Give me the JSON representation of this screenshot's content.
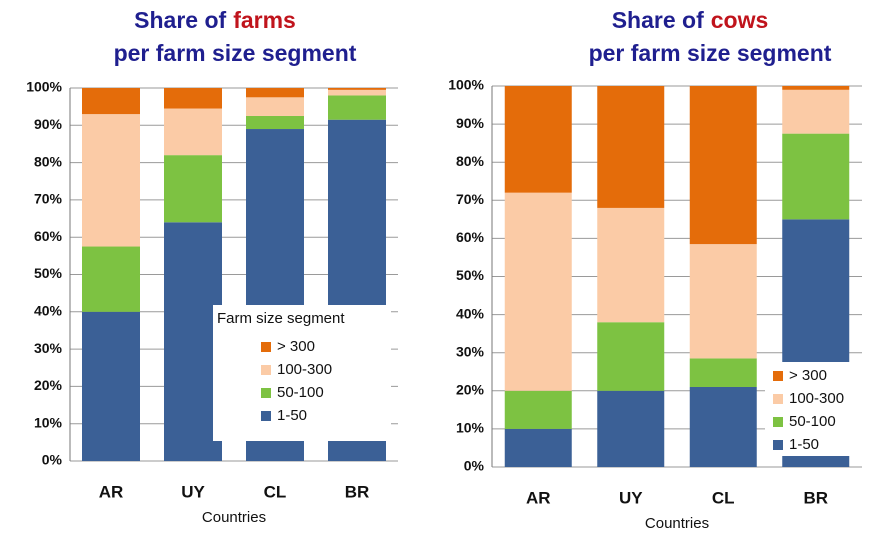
{
  "chart_data": [
    {
      "type": "stacked_bar",
      "title": {
        "prefix": "Share of",
        "highlight": "farms",
        "line2": "per farm size segment"
      },
      "xlabel": "Countries",
      "legend_title": "Farm size segment",
      "legend": "lower right",
      "categories": [
        "AR",
        "UY",
        "CL",
        "BR"
      ],
      "series": [
        {
          "name": "1-50",
          "color": "#3b6096",
          "values": [
            40,
            64,
            89,
            91.5
          ]
        },
        {
          "name": "50-100",
          "color": "#7dc242",
          "values": [
            17.5,
            18,
            3.5,
            6.5
          ]
        },
        {
          "name": "100-300",
          "color": "#fbcba6",
          "values": [
            35.5,
            12.5,
            5,
            1.5
          ]
        },
        {
          "name": "> 300",
          "color": "#e46c0a",
          "values": [
            7,
            5.5,
            2.5,
            0.5
          ]
        }
      ],
      "ylim": [
        0,
        100
      ],
      "yticks": [
        {
          "value": 0,
          "label": "0%"
        },
        {
          "value": 10,
          "label": "10%"
        },
        {
          "value": 20,
          "label": "20%"
        },
        {
          "value": 30,
          "label": "30%"
        },
        {
          "value": 40,
          "label": "40%"
        },
        {
          "value": 50,
          "label": "50%"
        },
        {
          "value": 60,
          "label": "60%"
        },
        {
          "value": 70,
          "label": "70%"
        },
        {
          "value": 80,
          "label": "80%"
        },
        {
          "value": 90,
          "label": "90%"
        },
        {
          "value": 100,
          "label": "100%"
        }
      ],
      "grid": true
    },
    {
      "type": "stacked_bar",
      "title": {
        "prefix": "Share of",
        "highlight": "cows",
        "line2": "per farm size segment"
      },
      "xlabel": "Countries",
      "legend": "lower right",
      "categories": [
        "AR",
        "UY",
        "CL",
        "BR"
      ],
      "series": [
        {
          "name": "1-50",
          "color": "#3b6096",
          "values": [
            10,
            20,
            21,
            65
          ]
        },
        {
          "name": "50-100",
          "color": "#7dc242",
          "values": [
            10,
            18,
            7.5,
            22.5
          ]
        },
        {
          "name": "100-300",
          "color": "#fbcba6",
          "values": [
            52,
            30,
            30,
            11.5
          ]
        },
        {
          "name": "> 300",
          "color": "#e46c0a",
          "values": [
            28,
            32,
            41.5,
            1
          ]
        }
      ],
      "ylim": [
        0,
        100
      ],
      "yticks": [
        {
          "value": 0,
          "label": "0%"
        },
        {
          "value": 10,
          "label": "10%"
        },
        {
          "value": 20,
          "label": "20%"
        },
        {
          "value": 30,
          "label": "30%"
        },
        {
          "value": 40,
          "label": "40%"
        },
        {
          "value": 50,
          "label": "50%"
        },
        {
          "value": 60,
          "label": "60%"
        },
        {
          "value": 70,
          "label": "70%"
        },
        {
          "value": 80,
          "label": "80%"
        },
        {
          "value": 90,
          "label": "90%"
        },
        {
          "value": 100,
          "label": "100%"
        }
      ],
      "grid": true
    }
  ]
}
